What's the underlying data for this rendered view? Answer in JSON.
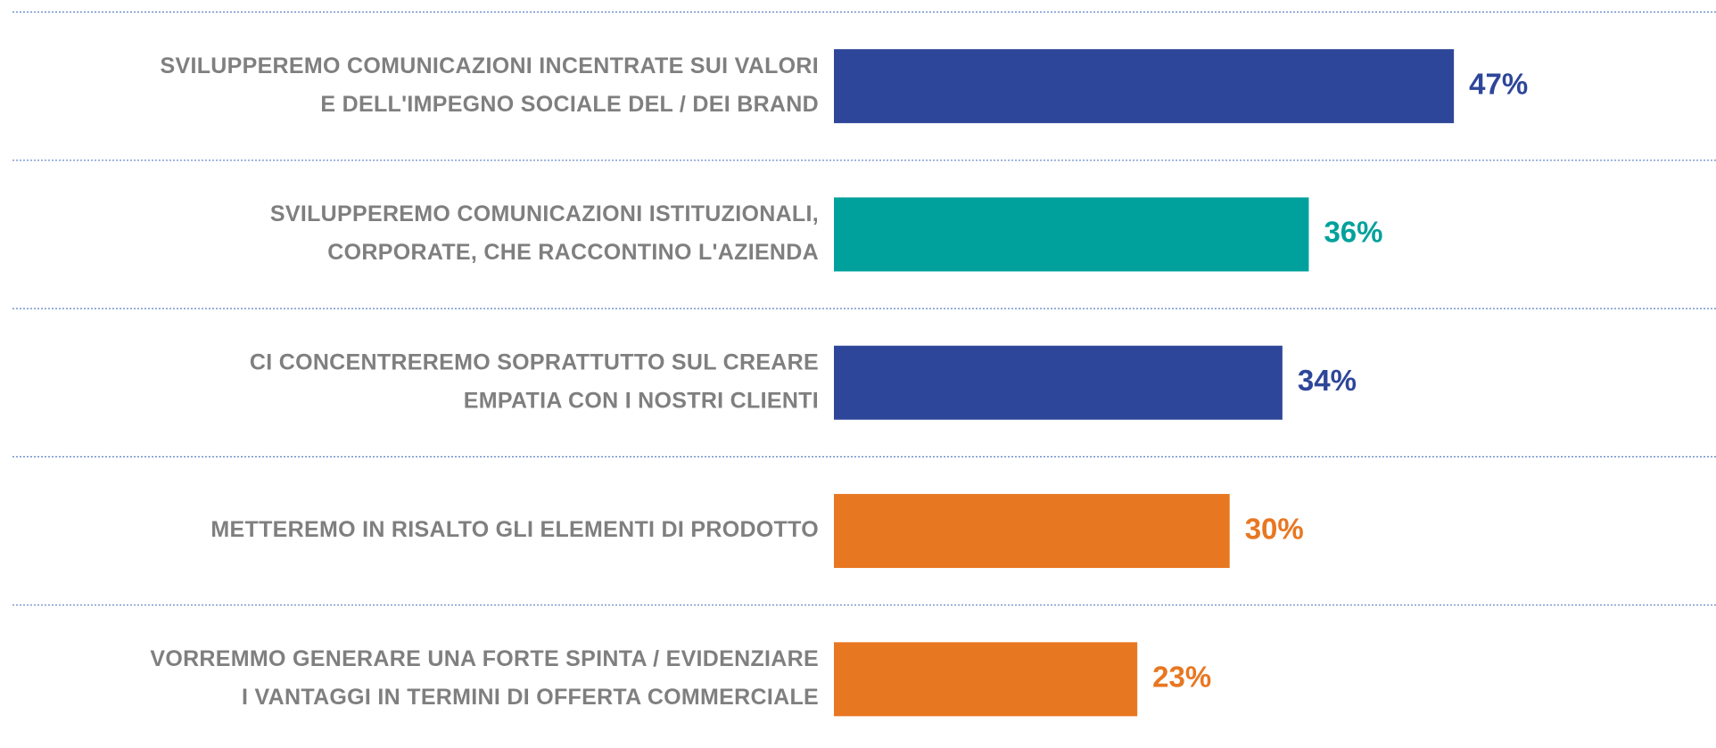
{
  "chart_data": {
    "type": "hbar",
    "categories": [
      [
        "SVILUPPEREMO COMUNICAZIONI INCENTRATE SUI VALORI",
        "E DELL'IMPEGNO SOCIALE DEL / DEI BRAND"
      ],
      [
        "SVILUPPEREMO COMUNICAZIONI ISTITUZIONALI,",
        "CORPORATE, CHE RACCONTINO L'AZIENDA"
      ],
      [
        "CI CONCENTREREMO SOPRATTUTTO SUL CREARE",
        "EMPATIA CON I NOSTRI CLIENTI"
      ],
      [
        "METTEREMO IN RISALTO GLI ELEMENTI DI PRODOTTO"
      ],
      [
        "VORREMMO GENERARE UNA FORTE SPINTA / EVIDENZIARE",
        "I VANTAGGI IN TERMINI DI OFFERTA COMMERCIALE"
      ]
    ],
    "values": [
      47,
      36,
      34,
      30,
      23
    ],
    "value_labels": [
      "47%",
      "36%",
      "34%",
      "30%",
      "23%"
    ],
    "colors": [
      "#2e4699",
      "#00a19c",
      "#2e4699",
      "#e87722",
      "#e87722"
    ]
  }
}
